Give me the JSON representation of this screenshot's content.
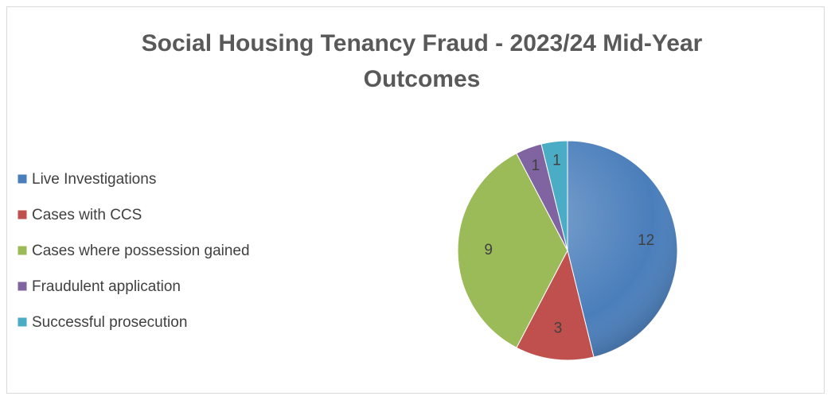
{
  "chart_data": {
    "type": "pie",
    "title": "Social Housing Tenancy Fraud - 2023/24 Mid-Year Outcomes",
    "categories": [
      "Live Investigations",
      "Cases with CCS",
      "Cases where possession gained",
      "Fraudulent application",
      "Successful prosecution"
    ],
    "values": [
      12,
      3,
      9,
      1,
      1
    ],
    "colors": [
      "#4a7ebb",
      "#c0504d",
      "#9bbb59",
      "#8064a2",
      "#4bacc6"
    ],
    "legend": "left"
  }
}
